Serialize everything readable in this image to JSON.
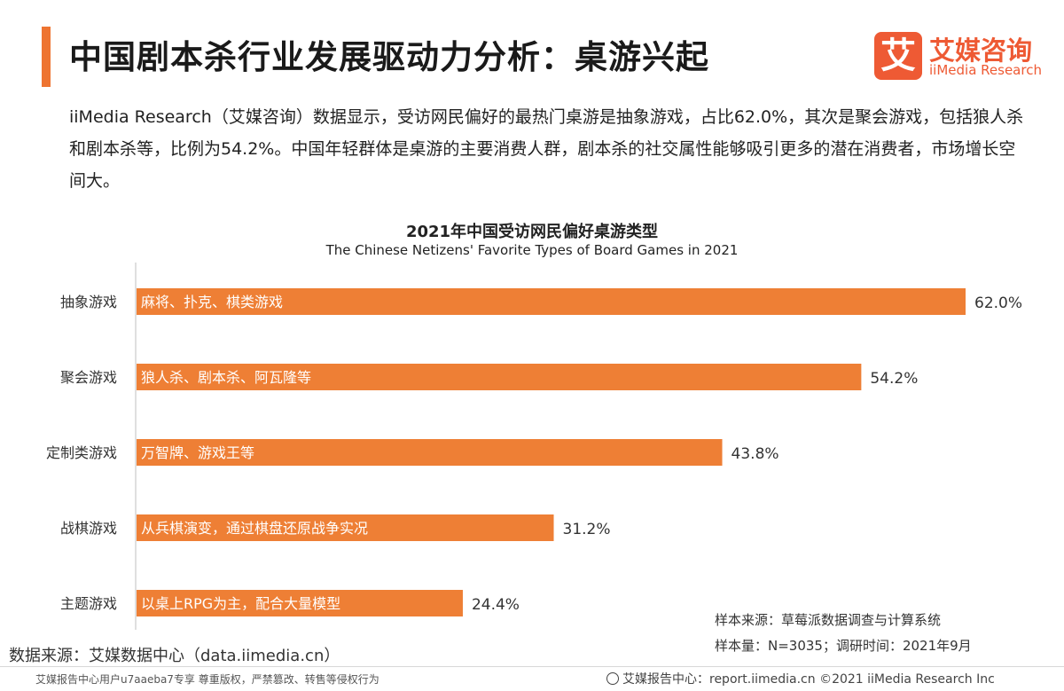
{
  "header": {
    "title": "中国剧本杀行业发展驱动力分析：桌游兴起",
    "accent_color": "#ee7431"
  },
  "logo": {
    "mark": "艾",
    "name_cn": "艾媒咨询",
    "name_en": "iiMedia Research",
    "color": "#ee5a34"
  },
  "description": "iiMedia Research（艾媒咨询）数据显示，受访网民偏好的最热门桌游是抽象游戏，占比62.0%，其次是聚会游戏，包括狼人杀和剧本杀等，比例为54.2%。中国年轻群体是桌游的主要消费人群，剧本杀的社交属性能够吸引更多的潜在消费者，市场增长空间大。",
  "chart_data": {
    "type": "bar",
    "orientation": "horizontal",
    "title": "2021年中国受访网民偏好桌游类型",
    "subtitle": "The Chinese Netizens' Favorite Types of Board Games in 2021",
    "categories": [
      "抽象游戏",
      "聚会游戏",
      "定制类游戏",
      "战棋游戏",
      "主题游戏"
    ],
    "values": [
      62.0,
      54.2,
      43.8,
      31.2,
      24.4
    ],
    "value_labels": [
      "62.0%",
      "54.2%",
      "43.8%",
      "31.2%",
      "24.4%"
    ],
    "bar_annotations": [
      "麻将、扑克、棋类游戏",
      "狼人杀、剧本杀、阿瓦隆等",
      "万智牌、游戏王等",
      "从兵棋演变，通过棋盘还原战争实况",
      "以桌上RPG为主，配合大量模型"
    ],
    "unit": "%",
    "xlim": [
      0,
      62.0
    ],
    "grid": false,
    "bar_color": "#ee7f35"
  },
  "sources": {
    "data_source": "数据来源：艾媒数据中心（data.iimedia.cn）",
    "sample_source": "样本来源：草莓派数据调查与计算系统",
    "sample_size": "样本量：N=3035；调研时间：2021年9月"
  },
  "footer": {
    "copyright_notice": "艾媒报告中心用户u7aaeba7专享 尊重版权，严禁篡改、转售等侵权行为",
    "report_center": "艾媒报告中心：report.iimedia.cn ©2021 iiMedia Research Inc"
  }
}
